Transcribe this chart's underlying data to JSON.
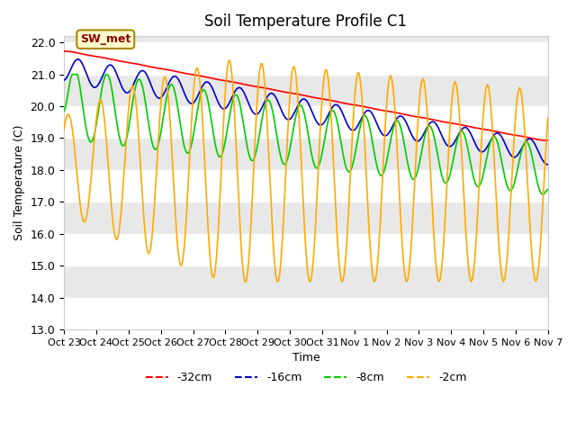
{
  "title": "Soil Temperature Profile C1",
  "xlabel": "Time",
  "ylabel": "Soil Temperature (C)",
  "ylim": [
    13.0,
    22.2
  ],
  "yticks": [
    13.0,
    14.0,
    15.0,
    16.0,
    17.0,
    18.0,
    19.0,
    20.0,
    21.0,
    22.0
  ],
  "xtick_labels": [
    "Oct 23",
    "Oct 24",
    "Oct 25",
    "Oct 26",
    "Oct 27",
    "Oct 28",
    "Oct 29",
    "Oct 30",
    "Oct 31",
    "Nov 1",
    "Nov 2",
    "Nov 3",
    "Nov 4",
    "Nov 5",
    "Nov 6",
    "Nov 7"
  ],
  "annotation_text": "SW_met",
  "colors": {
    "-32cm": "#ff0000",
    "-16cm": "#0000cc",
    "-8cm": "#00cc00",
    "-2cm": "#ffaa00"
  },
  "legend_labels": [
    "-32cm",
    "-16cm",
    "-8cm",
    "-2cm"
  ],
  "background_color": "#ffffff",
  "plot_bg_color": "#e8e8e8",
  "grid_color": "#ffffff"
}
